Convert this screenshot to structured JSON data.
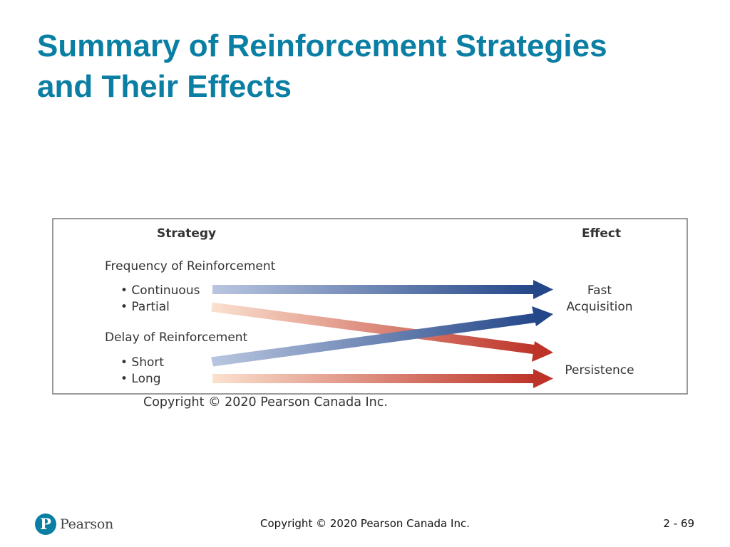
{
  "slide": {
    "title_line1": "Summary of Reinforcement Strategies",
    "title_line2": "and Their Effects"
  },
  "diagram": {
    "strategy_heading": "Strategy",
    "effect_heading": "Effect",
    "groups": [
      {
        "label": "Frequency of Reinforcement",
        "items": [
          "• Continuous",
          "• Partial"
        ]
      },
      {
        "label": "Delay of Reinforcement",
        "items": [
          "• Short",
          "• Long"
        ]
      }
    ],
    "effects": {
      "fast_line1": "Fast",
      "fast_line2": "Acquisition",
      "persistence": "Persistence"
    },
    "arrows": [
      {
        "from": "Continuous",
        "to": "Fast Acquisition",
        "color": "#2b4d8f"
      },
      {
        "from": "Partial",
        "to": "Persistence",
        "color": "#c0392b"
      },
      {
        "from": "Short",
        "to": "Fast Acquisition",
        "color": "#2b4d8f"
      },
      {
        "from": "Long",
        "to": "Persistence",
        "color": "#c0392b"
      }
    ],
    "copyright": "Copyright © 2020 Pearson Canada Inc."
  },
  "footer": {
    "logo_letter": "P",
    "logo_word": "Pearson",
    "copyright": "Copyright © 2020 Pearson Canada Inc.",
    "page_number": "2 - 69"
  },
  "colors": {
    "title": "#0a7fa3",
    "blue_arrow": "#2b4d8f",
    "red_arrow": "#c0392b"
  }
}
